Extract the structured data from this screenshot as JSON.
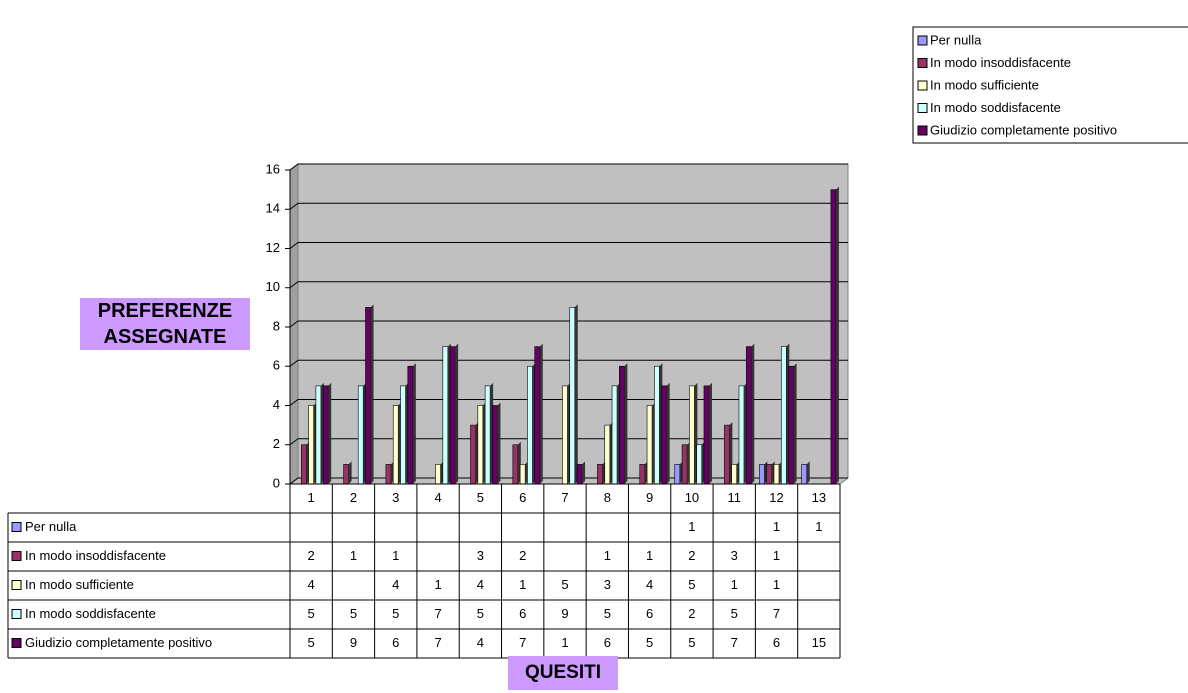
{
  "chart_data": {
    "type": "bar",
    "y_label": "PREFERENZE ASSEGNATE",
    "x_label": "QUESITI",
    "categories": [
      "1",
      "2",
      "3",
      "4",
      "5",
      "6",
      "7",
      "8",
      "9",
      "10",
      "11",
      "12",
      "13"
    ],
    "series": [
      {
        "name": "Per nulla",
        "color": "#9999ff",
        "values": [
          null,
          null,
          null,
          null,
          null,
          null,
          null,
          null,
          null,
          1,
          null,
          1,
          1
        ]
      },
      {
        "name": "In modo insoddisfacente",
        "color": "#993366",
        "values": [
          2,
          1,
          1,
          null,
          3,
          2,
          null,
          1,
          1,
          2,
          3,
          1,
          null
        ]
      },
      {
        "name": "In modo sufficiente",
        "color": "#ffffcc",
        "values": [
          4,
          null,
          4,
          1,
          4,
          1,
          5,
          3,
          4,
          5,
          1,
          1,
          null
        ]
      },
      {
        "name": "In modo soddisfacente",
        "color": "#ccffff",
        "values": [
          5,
          5,
          5,
          7,
          5,
          6,
          9,
          5,
          6,
          2,
          5,
          7,
          null
        ]
      },
      {
        "name": "Giudizio completamente positivo",
        "color": "#660066",
        "values": [
          5,
          9,
          6,
          7,
          4,
          7,
          1,
          6,
          5,
          5,
          7,
          6,
          15
        ]
      }
    ],
    "ylim": [
      0,
      16
    ],
    "yticks": [
      0,
      2,
      4,
      6,
      8,
      10,
      12,
      14,
      16
    ],
    "grid": true,
    "legend": "top-right"
  }
}
